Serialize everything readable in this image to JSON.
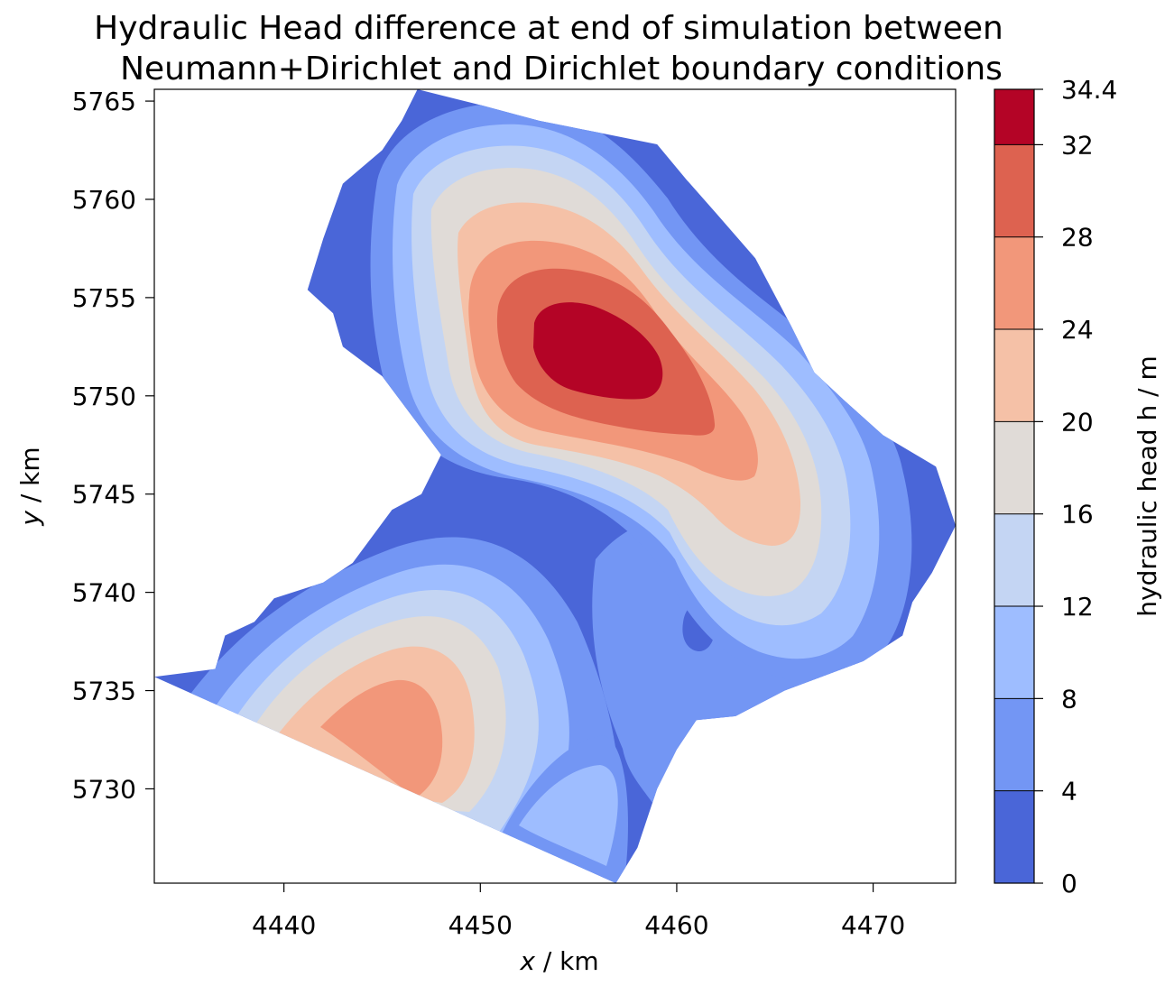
{
  "chart_data": {
    "type": "heatmap",
    "title_lines": [
      "Hydraulic Head difference at end of simulation between",
      "Neumann+Dirichlet and Dirichlet boundary conditions"
    ],
    "xlabel_var": "x",
    "xlabel_unit": " / km",
    "ylabel_var": "y",
    "ylabel_unit": " / km",
    "xlim": [
      4433.4,
      4474.2
    ],
    "ylim": [
      5725.2,
      5765.6
    ],
    "xticks": [
      4440,
      4450,
      4460,
      4470
    ],
    "yticks": [
      5730,
      5735,
      5740,
      5745,
      5750,
      5755,
      5760,
      5765
    ],
    "colorbar": {
      "label": "hydraulic head h / m",
      "levels": [
        0,
        4,
        8,
        12,
        16,
        20,
        24,
        28,
        32,
        34.4
      ],
      "tick_labels": [
        "0",
        "4",
        "8",
        "12",
        "16",
        "20",
        "24",
        "28",
        "32",
        "34.4"
      ],
      "colors": [
        "#4a66d8",
        "#7396f4",
        "#9ebdff",
        "#c4d5f3",
        "#e0dbd7",
        "#f5c1a7",
        "#f2977a",
        "#dd6250",
        "#b40426"
      ]
    },
    "peaks": [
      {
        "x": 4455.5,
        "y": 5752.0,
        "value": 34.4,
        "level": 8
      },
      {
        "x": 4445.5,
        "y": 5733.5,
        "value": 24.5,
        "level": 6
      },
      {
        "x": 4454.0,
        "y": 5728.5,
        "value": 9.5,
        "level": 2
      }
    ],
    "domain_outline_km": [
      [
        4433.4,
        5735.7
      ],
      [
        4436.5,
        5736.1
      ],
      [
        4437.0,
        5737.8
      ],
      [
        4438.5,
        5738.5
      ],
      [
        4439.5,
        5739.7
      ],
      [
        4442.0,
        5740.5
      ],
      [
        4443.5,
        5741.5
      ],
      [
        4445.5,
        5744.2
      ],
      [
        4447.0,
        5745.0
      ],
      [
        4448.0,
        5747.0
      ],
      [
        4446.5,
        5749.0
      ],
      [
        4445.0,
        5751.0
      ],
      [
        4443.0,
        5752.5
      ],
      [
        4442.5,
        5754.2
      ],
      [
        4441.2,
        5755.4
      ],
      [
        4442.0,
        5758.0
      ],
      [
        4443.0,
        5760.8
      ],
      [
        4445.0,
        5762.5
      ],
      [
        4446.0,
        5764.0
      ],
      [
        4446.8,
        5765.6
      ],
      [
        4450.0,
        5764.8
      ],
      [
        4453.0,
        5764.0
      ],
      [
        4456.0,
        5763.4
      ],
      [
        4459.0,
        5762.8
      ],
      [
        4460.5,
        5761.0
      ],
      [
        4462.0,
        5759.3
      ],
      [
        4464.0,
        5757.0
      ],
      [
        4465.8,
        5753.6
      ],
      [
        4467.0,
        5751.2
      ],
      [
        4468.5,
        5749.8
      ],
      [
        4470.5,
        5748.0
      ],
      [
        4473.2,
        5746.4
      ],
      [
        4474.2,
        5743.4
      ],
      [
        4473.0,
        5741.0
      ],
      [
        4472.0,
        5739.5
      ],
      [
        4471.5,
        5737.8
      ],
      [
        4469.5,
        5736.5
      ],
      [
        4465.5,
        5735.0
      ],
      [
        4463.0,
        5733.7
      ],
      [
        4461.0,
        5733.5
      ],
      [
        4460.0,
        5732.0
      ],
      [
        4459.0,
        5730.0
      ],
      [
        4458.0,
        5727.0
      ],
      [
        4456.9,
        5725.2
      ]
    ]
  }
}
